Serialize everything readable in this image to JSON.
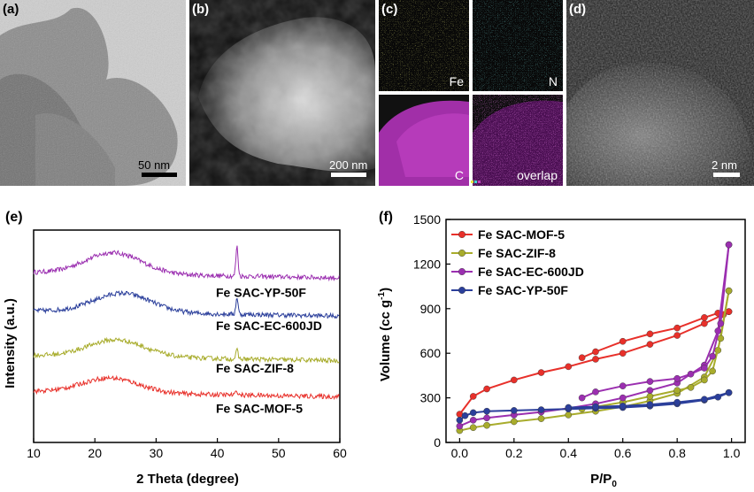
{
  "panels": {
    "a": {
      "label": "(a)",
      "scale": "50 nm"
    },
    "b": {
      "label": "(b)",
      "scale": "200 nm"
    },
    "c": {
      "label": "(c)",
      "maps": [
        "Fe",
        "N",
        "C",
        "overlap"
      ]
    },
    "d": {
      "label": "(d)",
      "scale": "2 nm"
    }
  },
  "colors": {
    "mof5": "#e8302a",
    "zif8": "#a8ac2c",
    "ec600": "#9b2fb0",
    "yp50": "#2b3f9b"
  },
  "chart_data": [
    {
      "type": "line",
      "label": "(e)",
      "xlabel": "2 Theta (degree)",
      "ylabel": "Intensity (a.u.)",
      "xlim": [
        10,
        60
      ],
      "xticks": [
        10,
        20,
        30,
        40,
        50,
        60
      ],
      "series_labels": [
        "Fe SAC-YP-50F",
        "Fe SAC-EC-600JD",
        "Fe SAC-ZIF-8",
        "Fe SAC-MOF-5"
      ],
      "series": [
        {
          "key": "ec600",
          "baseline": 0.8,
          "hump": 0.1,
          "hump_center": 23,
          "peak_at": 43.2,
          "peak_height": 0.14
        },
        {
          "key": "yp50",
          "baseline": 0.62,
          "hump": 0.09,
          "hump_center": 24.5,
          "peak_at": 43.2,
          "peak_height": 0.08
        },
        {
          "key": "zif8",
          "baseline": 0.41,
          "hump": 0.08,
          "hump_center": 23.5,
          "peak_at": 43.2,
          "peak_height": 0.04
        },
        {
          "key": "mof5",
          "baseline": 0.24,
          "hump": 0.07,
          "hump_center": 22.5,
          "peak_at": 43.2,
          "peak_height": 0.02
        }
      ]
    },
    {
      "type": "line",
      "label": "(f)",
      "xlabel": "P/P",
      "xlabel_sub": "0",
      "ylabel": "Volume (cc g",
      "ylabel_sup": "-1",
      "ylabel_end": ")",
      "xlim": [
        -0.05,
        1.05
      ],
      "ylim": [
        0,
        1500
      ],
      "xticks": [
        0.0,
        0.2,
        0.4,
        0.6,
        0.8,
        1.0
      ],
      "xtick_labels": [
        "0.0",
        "0.2",
        "0.4",
        "0.6",
        "0.8",
        "1.0"
      ],
      "yticks": [
        0,
        300,
        600,
        900,
        1200,
        1500
      ],
      "legend": [
        "Fe SAC-MOF-5",
        "Fe SAC-ZIF-8",
        "Fe SAC-EC-600JD",
        "Fe SAC-YP-50F"
      ],
      "legend_position": "top-left",
      "series": [
        {
          "name": "Fe SAC-MOF-5",
          "key": "mof5",
          "adsorption": [
            [
              0.0,
              190
            ],
            [
              0.05,
              310
            ],
            [
              0.1,
              360
            ],
            [
              0.2,
              420
            ],
            [
              0.3,
              470
            ],
            [
              0.4,
              510
            ],
            [
              0.5,
              560
            ],
            [
              0.6,
              600
            ],
            [
              0.7,
              660
            ],
            [
              0.8,
              720
            ],
            [
              0.9,
              800
            ],
            [
              0.97,
              860
            ],
            [
              0.99,
              880
            ]
          ],
          "desorption": [
            [
              0.99,
              880
            ],
            [
              0.95,
              870
            ],
            [
              0.9,
              840
            ],
            [
              0.8,
              770
            ],
            [
              0.7,
              730
            ],
            [
              0.6,
              680
            ],
            [
              0.5,
              610
            ],
            [
              0.45,
              570
            ]
          ]
        },
        {
          "name": "Fe SAC-ZIF-8",
          "key": "zif8",
          "adsorption": [
            [
              0.0,
              80
            ],
            [
              0.05,
              100
            ],
            [
              0.1,
              115
            ],
            [
              0.2,
              140
            ],
            [
              0.3,
              160
            ],
            [
              0.4,
              185
            ],
            [
              0.5,
              210
            ],
            [
              0.6,
              240
            ],
            [
              0.7,
              280
            ],
            [
              0.8,
              330
            ],
            [
              0.9,
              440
            ],
            [
              0.95,
              620
            ],
            [
              0.99,
              1020
            ]
          ],
          "desorption": [
            [
              0.99,
              1020
            ],
            [
              0.96,
              700
            ],
            [
              0.93,
              480
            ],
            [
              0.9,
              420
            ],
            [
              0.85,
              370
            ],
            [
              0.8,
              350
            ],
            [
              0.7,
              310
            ],
            [
              0.6,
              270
            ],
            [
              0.5,
              240
            ],
            [
              0.45,
              225
            ]
          ]
        },
        {
          "name": "Fe SAC-EC-600JD",
          "key": "ec600",
          "adsorption": [
            [
              0.0,
              110
            ],
            [
              0.05,
              150
            ],
            [
              0.1,
              165
            ],
            [
              0.2,
              185
            ],
            [
              0.3,
              205
            ],
            [
              0.4,
              230
            ],
            [
              0.5,
              260
            ],
            [
              0.6,
              300
            ],
            [
              0.7,
              350
            ],
            [
              0.8,
              400
            ],
            [
              0.9,
              520
            ],
            [
              0.95,
              750
            ],
            [
              0.99,
              1330
            ]
          ],
          "desorption": [
            [
              0.99,
              1330
            ],
            [
              0.96,
              800
            ],
            [
              0.93,
              580
            ],
            [
              0.9,
              500
            ],
            [
              0.85,
              460
            ],
            [
              0.8,
              430
            ],
            [
              0.7,
              410
            ],
            [
              0.6,
              380
            ],
            [
              0.5,
              340
            ],
            [
              0.45,
              300
            ]
          ]
        },
        {
          "name": "Fe SAC-YP-50F",
          "key": "yp50",
          "adsorption": [
            [
              0.0,
              150
            ],
            [
              0.02,
              180
            ],
            [
              0.05,
              200
            ],
            [
              0.1,
              210
            ],
            [
              0.2,
              215
            ],
            [
              0.3,
              220
            ],
            [
              0.4,
              225
            ],
            [
              0.5,
              230
            ],
            [
              0.6,
              235
            ],
            [
              0.7,
              245
            ],
            [
              0.8,
              260
            ],
            [
              0.9,
              285
            ],
            [
              0.95,
              305
            ],
            [
              0.99,
              335
            ]
          ],
          "desorption": [
            [
              0.99,
              335
            ],
            [
              0.9,
              290
            ],
            [
              0.8,
              270
            ],
            [
              0.7,
              255
            ],
            [
              0.6,
              245
            ],
            [
              0.5,
              240
            ],
            [
              0.4,
              235
            ]
          ]
        }
      ]
    }
  ]
}
